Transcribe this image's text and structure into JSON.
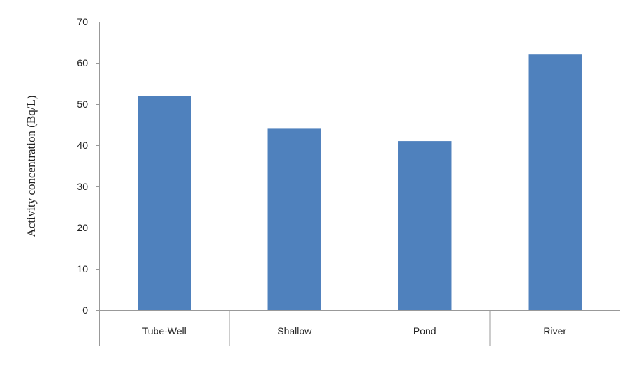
{
  "chart_data": {
    "type": "bar",
    "title": "",
    "xlabel": "",
    "ylabel": "Activity concentration (Bq/L)",
    "categories": [
      "Tube-Well",
      "Shallow",
      "Pond",
      "River"
    ],
    "values": [
      52,
      44,
      41,
      62
    ],
    "ylim": [
      0,
      70
    ],
    "yticks": [
      "0",
      "10",
      "20",
      "30",
      "40",
      "50",
      "60",
      "70"
    ],
    "grid": false,
    "legend": "none",
    "bar_color": "#4f81bd",
    "axis_color": "#999999",
    "frame_color": "#8c8c8c"
  }
}
